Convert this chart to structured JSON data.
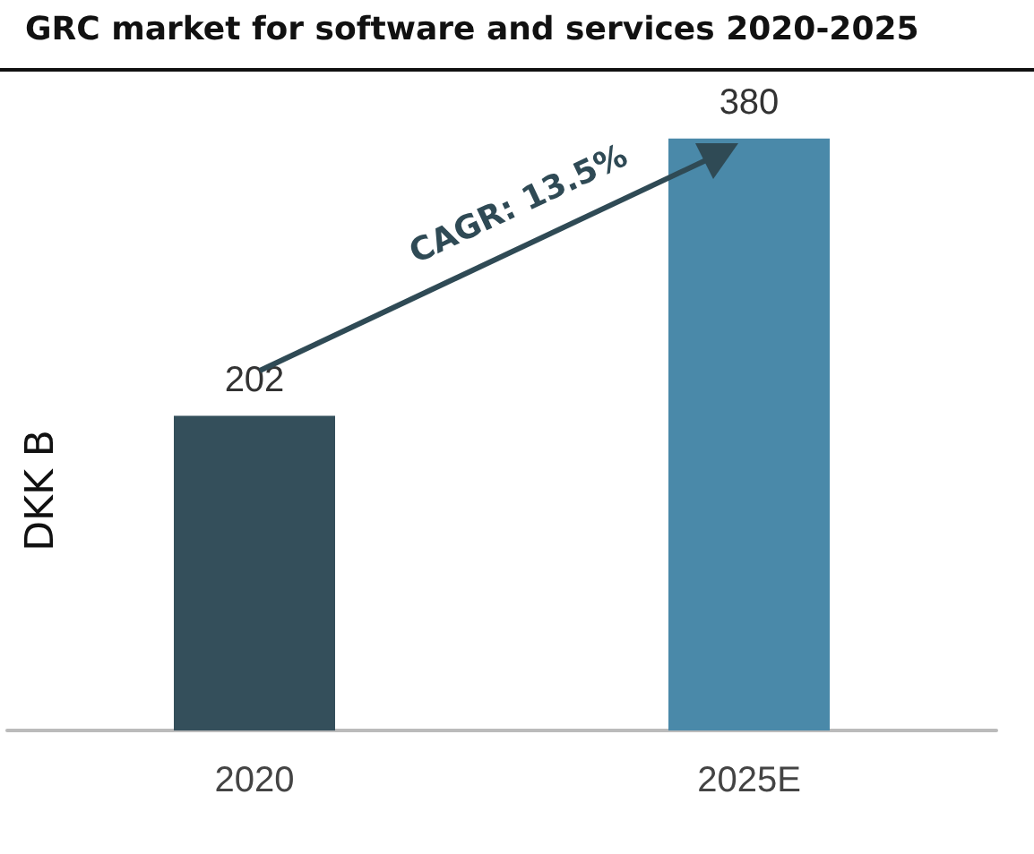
{
  "chart_data": {
    "type": "bar",
    "title": "GRC market for software and services 2020-2025",
    "ylabel": "DKK B",
    "categories": [
      "2020",
      "2025E"
    ],
    "values": [
      202,
      380
    ],
    "colors": [
      "#344f5b",
      "#4a89a9"
    ],
    "data_labels": true,
    "annotations": [
      "CAGR: 13.5%"
    ]
  }
}
